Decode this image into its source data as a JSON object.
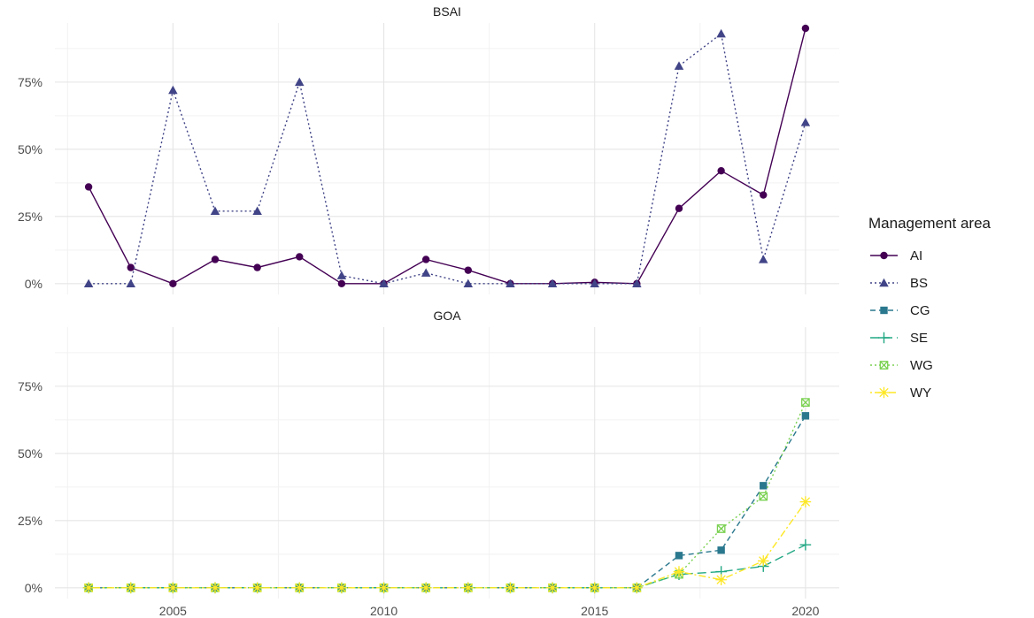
{
  "chart_data": {
    "type": "line",
    "legend": {
      "title": "Management area",
      "position": "right"
    },
    "x_ticks": [
      2005,
      2010,
      2015,
      2020
    ],
    "y_ticks": [
      "0%",
      "25%",
      "50%",
      "75%"
    ],
    "y_tick_values": [
      0,
      0.25,
      0.5,
      0.75
    ],
    "xlim": [
      2002.2,
      2020.8
    ],
    "ylim": [
      -0.04,
      0.97
    ],
    "grid": true,
    "panels": [
      {
        "title": "BSAI",
        "series": [
          {
            "name": "AI",
            "color": "#440154",
            "dash": "solid",
            "marker": "circle",
            "x": [
              2003,
              2004,
              2005,
              2006,
              2007,
              2008,
              2009,
              2010,
              2011,
              2012,
              2013,
              2014,
              2015,
              2016,
              2017,
              2018,
              2019,
              2020
            ],
            "y": [
              0.36,
              0.06,
              0.0,
              0.09,
              0.06,
              0.1,
              0.0,
              0.0,
              0.09,
              0.05,
              0.0,
              0.0,
              0.005,
              0.0,
              0.28,
              0.42,
              0.33,
              0.95
            ]
          },
          {
            "name": "BS",
            "color": "#414487",
            "dash": "dotted",
            "marker": "triangle",
            "x": [
              2003,
              2004,
              2005,
              2006,
              2007,
              2008,
              2009,
              2010,
              2011,
              2012,
              2013,
              2014,
              2015,
              2016,
              2017,
              2018,
              2019,
              2020
            ],
            "y": [
              0.0,
              0.0,
              0.72,
              0.27,
              0.27,
              0.75,
              0.03,
              0.0,
              0.04,
              0.0,
              0.0,
              0.0,
              0.0,
              0.0,
              0.81,
              0.93,
              0.09,
              0.6
            ]
          }
        ]
      },
      {
        "title": "GOA",
        "series": [
          {
            "name": "CG",
            "color": "#2a788e",
            "dash": "dashed",
            "marker": "square",
            "x": [
              2003,
              2004,
              2005,
              2006,
              2007,
              2008,
              2009,
              2010,
              2011,
              2012,
              2013,
              2014,
              2015,
              2016,
              2017,
              2018,
              2019,
              2020
            ],
            "y": [
              0,
              0,
              0,
              0,
              0,
              0,
              0,
              0,
              0,
              0,
              0,
              0,
              0,
              0,
              0.12,
              0.14,
              0.38,
              0.64
            ]
          },
          {
            "name": "SE",
            "color": "#22a884",
            "dash": "longdash",
            "marker": "plus",
            "x": [
              2003,
              2004,
              2005,
              2006,
              2007,
              2008,
              2009,
              2010,
              2011,
              2012,
              2013,
              2014,
              2015,
              2016,
              2017,
              2018,
              2019,
              2020
            ],
            "y": [
              0,
              0,
              0,
              0,
              0,
              0,
              0,
              0,
              0,
              0,
              0,
              0,
              0,
              0,
              0.05,
              0.06,
              0.08,
              0.16
            ]
          },
          {
            "name": "WG",
            "color": "#7ad151",
            "dash": "dotted",
            "marker": "boxx",
            "x": [
              2003,
              2004,
              2005,
              2006,
              2007,
              2008,
              2009,
              2010,
              2011,
              2012,
              2013,
              2014,
              2015,
              2016,
              2017,
              2018,
              2019,
              2020
            ],
            "y": [
              0,
              0,
              0,
              0,
              0,
              0,
              0,
              0,
              0,
              0,
              0,
              0,
              0,
              0,
              0.05,
              0.22,
              0.34,
              0.69
            ]
          },
          {
            "name": "WY",
            "color": "#fde725",
            "dash": "dotdash",
            "marker": "star",
            "x": [
              2003,
              2004,
              2005,
              2006,
              2007,
              2008,
              2009,
              2010,
              2011,
              2012,
              2013,
              2014,
              2015,
              2016,
              2017,
              2018,
              2019,
              2020
            ],
            "y": [
              0,
              0,
              0,
              0,
              0,
              0,
              0,
              0,
              0,
              0,
              0,
              0,
              0,
              0,
              0.06,
              0.03,
              0.1,
              0.32
            ]
          }
        ]
      }
    ]
  }
}
